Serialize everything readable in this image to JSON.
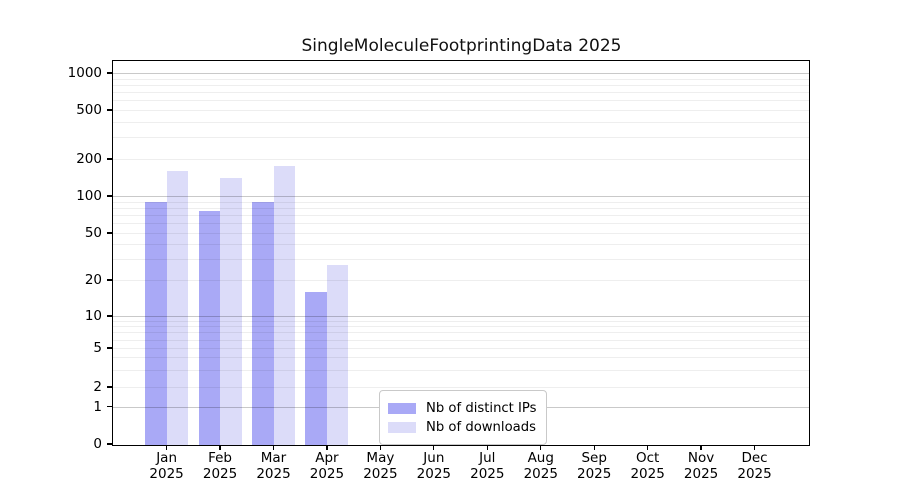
{
  "title": "SingleMoleculeFootprintingData 2025",
  "legend": {
    "items": [
      {
        "label": "Nb of distinct IPs",
        "color": "#a9a9f6"
      },
      {
        "label": "Nb of downloads",
        "color": "#dcdcf9"
      }
    ]
  },
  "chart_data": {
    "type": "bar",
    "title": "SingleMoleculeFootprintingData 2025",
    "categories": [
      "Jan",
      "Feb",
      "Mar",
      "Apr",
      "May",
      "Jun",
      "Jul",
      "Aug",
      "Sep",
      "Oct",
      "Nov",
      "Dec"
    ],
    "year_label": "2025",
    "series": [
      {
        "name": "Nb of distinct IPs",
        "color": "#a9a9f6",
        "values": [
          90,
          75,
          90,
          16,
          null,
          null,
          null,
          null,
          null,
          null,
          null,
          null
        ]
      },
      {
        "name": "Nb of downloads",
        "color": "#dcdcf9",
        "values": [
          160,
          140,
          175,
          27,
          null,
          null,
          null,
          null,
          null,
          null,
          null,
          null
        ]
      }
    ],
    "xlabel": "",
    "ylabel": "",
    "y_ticks": [
      0,
      1,
      2,
      5,
      10,
      20,
      50,
      100,
      200,
      500,
      1000
    ],
    "ylim": [
      0,
      1000
    ],
    "yscale": "log-like with zero baseline",
    "grid": true,
    "legend_position": "inside lower-center"
  }
}
